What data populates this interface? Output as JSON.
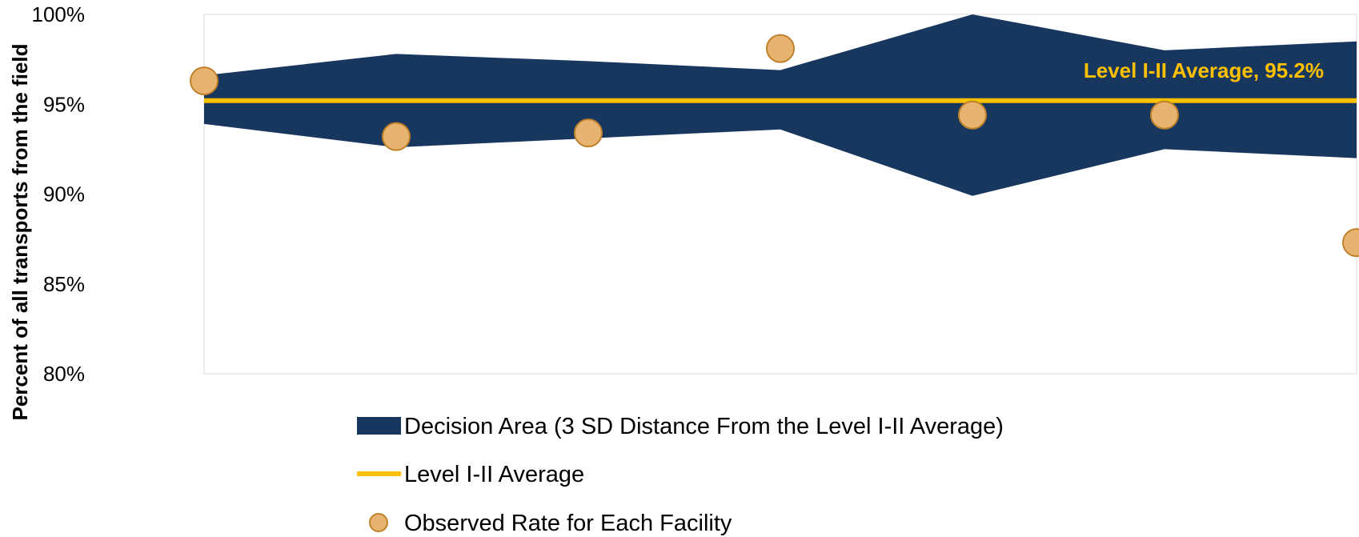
{
  "chart_data": {
    "type": "area",
    "title": "",
    "xlabel": "",
    "ylabel": "Percent of all transports from the field",
    "ylim": [
      80,
      100
    ],
    "y_ticks": [
      "80%",
      "85%",
      "90%",
      "95%",
      "100%"
    ],
    "y_tick_values": [
      80,
      85,
      90,
      95,
      100
    ],
    "x": [
      1,
      2,
      3,
      4,
      5,
      6,
      7
    ],
    "grid": false,
    "legend_placement": "bottom",
    "average": {
      "name": "Level I-II Average",
      "value": 95.2,
      "label": "Level I-II Average, 95.2%",
      "color": "#FFC000"
    },
    "band": {
      "name": "Decision Area (3 SD Distance From the Level I-II Average)",
      "upper": [
        96.6,
        97.8,
        97.4,
        96.9,
        100.0,
        98.0,
        98.5
      ],
      "lower": [
        93.9,
        92.6,
        93.1,
        93.6,
        89.9,
        92.5,
        92.0
      ],
      "color": "#17375E"
    },
    "points": {
      "name": "Observed Rate for Each Facility",
      "values": [
        96.3,
        93.2,
        93.4,
        98.1,
        94.4,
        94.4,
        87.3
      ],
      "fill": "#E6B470",
      "stroke": "#C0802A"
    }
  }
}
